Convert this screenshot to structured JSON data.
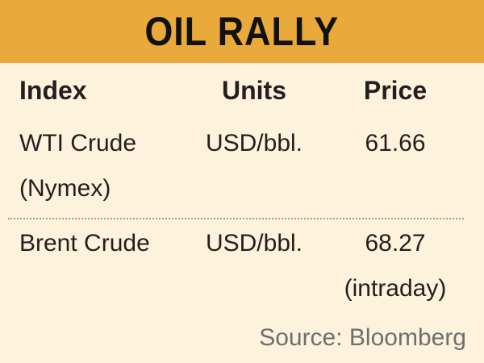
{
  "header": {
    "title": "OIL RALLY"
  },
  "table": {
    "columns": [
      "Index",
      "Units",
      "Price"
    ],
    "rows": [
      [
        [
          "WTI Crude",
          "(Nymex)"
        ],
        [
          "USD/bbl."
        ],
        [
          "61.66"
        ]
      ],
      [
        [
          "Brent Crude"
        ],
        [
          "USD/bbl."
        ],
        [
          "68.27",
          "(intraday)"
        ]
      ]
    ]
  },
  "source": "Source: Bloomberg"
}
